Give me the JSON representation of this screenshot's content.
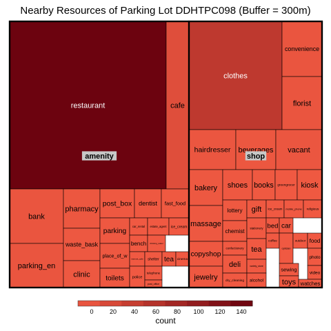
{
  "title": "Nearby Resources of Parking Lot DDHTPC098 (Buffer = 300m)",
  "chart_data": {
    "type": "treemap",
    "title": "Nearby Resources of Parking Lot DDHTPC098 (Buffer = 300m)",
    "color_by": "count",
    "colors": {
      "low": "#f15a42",
      "high": "#67000d",
      "border": "#000000",
      "group_label_bg": "#c8c8c8"
    },
    "legend": {
      "title": "count",
      "ticks": [
        "0",
        "20",
        "40",
        "60",
        "80",
        "100",
        "120",
        "140"
      ],
      "range": [
        0,
        150
      ],
      "placement": "bottom"
    },
    "groups": [
      {
        "name": "amenity",
        "items": [
          {
            "name": "restaurant",
            "count": 145
          },
          {
            "name": "cafe",
            "count": 20
          },
          {
            "name": "bank",
            "count": 8
          },
          {
            "name": "parking_en",
            "count": 8
          },
          {
            "name": "pharmacy",
            "count": 5
          },
          {
            "name": "waste_bask",
            "count": 4
          },
          {
            "name": "clinic",
            "count": 4
          },
          {
            "name": "post_box",
            "count": 3
          },
          {
            "name": "dentist",
            "count": 3
          },
          {
            "name": "fast_food",
            "count": 2
          },
          {
            "name": "parking",
            "count": 3
          },
          {
            "name": "place_of_w",
            "count": 3
          },
          {
            "name": "toilets",
            "count": 3
          },
          {
            "name": "car_rental",
            "count": 1
          },
          {
            "name": "estate_agent",
            "count": 1
          },
          {
            "name": "ice_cream",
            "count": 1
          },
          {
            "name": "bench",
            "count": 1
          },
          {
            "name": "drinking_water",
            "count": 1
          },
          {
            "name": "internet_cafe",
            "count": 1
          },
          {
            "name": "shelter",
            "count": 1
          },
          {
            "name": "tea",
            "count": 1
          },
          {
            "name": "cinema",
            "count": 1
          },
          {
            "name": "police",
            "count": 1
          },
          {
            "name": "telephone",
            "count": 1
          },
          {
            "name": "post_office",
            "count": 1
          }
        ]
      },
      {
        "name": "shop",
        "items": [
          {
            "name": "clothes",
            "count": 55
          },
          {
            "name": "convenience",
            "count": 8
          },
          {
            "name": "florist",
            "count": 8
          },
          {
            "name": "hairdresser",
            "count": 6
          },
          {
            "name": "beverages",
            "count": 5
          },
          {
            "name": "vacant",
            "count": 6
          },
          {
            "name": "bakery",
            "count": 4
          },
          {
            "name": "massage",
            "count": 4
          },
          {
            "name": "copyshop",
            "count": 3
          },
          {
            "name": "jewelry",
            "count": 3
          },
          {
            "name": "shoes",
            "count": 3
          },
          {
            "name": "books",
            "count": 2
          },
          {
            "name": "greengrocer",
            "count": 1
          },
          {
            "name": "kiosk",
            "count": 2
          },
          {
            "name": "lottery",
            "count": 2
          },
          {
            "name": "chemist",
            "count": 2
          },
          {
            "name": "confectionery",
            "count": 1
          },
          {
            "name": "deli",
            "count": 2
          },
          {
            "name": "dry_cleaning",
            "count": 1
          },
          {
            "name": "gift",
            "count": 2
          },
          {
            "name": "ice_cream",
            "count": 1
          },
          {
            "name": "mobile_phone",
            "count": 1
          },
          {
            "name": "religious",
            "count": 1
          },
          {
            "name": "stationery",
            "count": 1
          },
          {
            "name": "tea",
            "count": 1
          },
          {
            "name": "variety_store",
            "count": 1
          },
          {
            "name": "alcohol",
            "count": 1
          },
          {
            "name": "bed",
            "count": 1
          },
          {
            "name": "car",
            "count": 1
          },
          {
            "name": "coffee",
            "count": 1
          },
          {
            "name": "optician",
            "count": 1
          },
          {
            "name": "outdoor",
            "count": 1
          },
          {
            "name": "food",
            "count": 1
          },
          {
            "name": "photo",
            "count": 1
          },
          {
            "name": "sewing",
            "count": 1
          },
          {
            "name": "video",
            "count": 1
          },
          {
            "name": "toys",
            "count": 1
          },
          {
            "name": "watches",
            "count": 1
          }
        ]
      }
    ]
  }
}
